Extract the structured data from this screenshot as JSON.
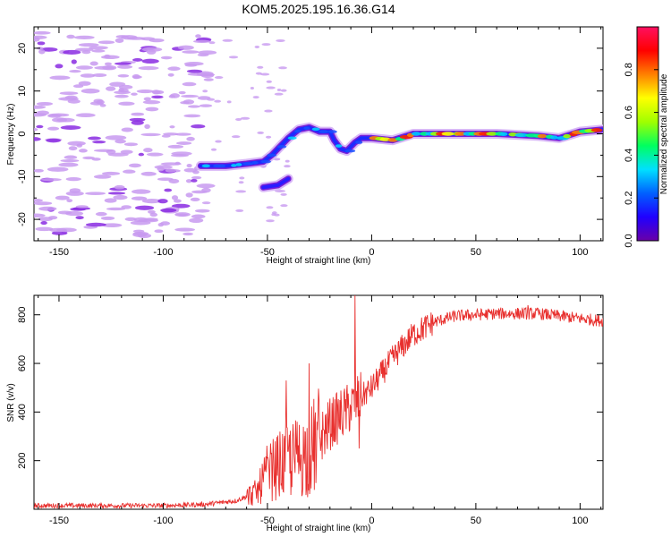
{
  "title": "KOM5.2025.195.16.36.G14",
  "colors": {
    "snr_line": "#e8302e",
    "scatter_light": "#c89af0",
    "scatter_dark": "#8a2be2",
    "colorbar": [
      "#6a00a8",
      "#2000ff",
      "#0060ff",
      "#00e0ff",
      "#00ff60",
      "#a0ff00",
      "#ffff00",
      "#ff8000",
      "#ff0000",
      "#ff1060"
    ]
  },
  "chart_data": [
    {
      "type": "heatmap",
      "xlabel": "Height of straight line (km)",
      "ylabel": "Frequency (Hz)",
      "xlim": [
        -162,
        111
      ],
      "ylim": [
        -25,
        25
      ],
      "xticks": [
        -150,
        -100,
        -50,
        0,
        50,
        100
      ],
      "yticks": [
        -20,
        -10,
        0,
        10,
        20
      ],
      "colorbar": {
        "label": "Normalized spectral amplitude",
        "ticks": [
          0.0,
          0.2,
          0.4,
          0.6,
          0.8
        ],
        "range": [
          0,
          1
        ]
      },
      "ridge": [
        {
          "x": -82,
          "y": -7.5
        },
        {
          "x": -70,
          "y": -7.5
        },
        {
          "x": -60,
          "y": -7.0
        },
        {
          "x": -52,
          "y": -6.5
        },
        {
          "x": -48,
          "y": -5.0
        },
        {
          "x": -45,
          "y": -3.5
        },
        {
          "x": -40,
          "y": -1.0
        },
        {
          "x": -35,
          "y": 1.0
        },
        {
          "x": -30,
          "y": 1.5
        },
        {
          "x": -25,
          "y": 0.5
        },
        {
          "x": -20,
          "y": 0.5
        },
        {
          "x": -18,
          "y": -1.5
        },
        {
          "x": -15,
          "y": -3.5
        },
        {
          "x": -12,
          "y": -4.0
        },
        {
          "x": -8,
          "y": -2.0
        },
        {
          "x": -5,
          "y": -1.0
        },
        {
          "x": 0,
          "y": -1.0
        },
        {
          "x": 10,
          "y": -1.5
        },
        {
          "x": 20,
          "y": 0.0
        },
        {
          "x": 40,
          "y": 0.0
        },
        {
          "x": 60,
          "y": 0.0
        },
        {
          "x": 80,
          "y": -0.5
        },
        {
          "x": 90,
          "y": -1.0
        },
        {
          "x": 100,
          "y": 0.5
        },
        {
          "x": 111,
          "y": 1.0
        }
      ],
      "branch": [
        {
          "x": -52,
          "y": -12.5
        },
        {
          "x": -45,
          "y": -12.0
        },
        {
          "x": -40,
          "y": -10.5
        }
      ]
    },
    {
      "type": "line",
      "xlabel": "Height of straight line (km)",
      "ylabel": "SNR (v/v)",
      "xlim": [
        -162,
        111
      ],
      "ylim": [
        0,
        880
      ],
      "xticks": [
        -150,
        -100,
        -50,
        0,
        50,
        100
      ],
      "yticks": [
        200,
        400,
        600,
        800
      ],
      "trend": [
        {
          "x": -162,
          "y": 15
        },
        {
          "x": -100,
          "y": 15
        },
        {
          "x": -80,
          "y": 20
        },
        {
          "x": -65,
          "y": 35
        },
        {
          "x": -55,
          "y": 70
        },
        {
          "x": -50,
          "y": 150
        },
        {
          "x": -40,
          "y": 200
        },
        {
          "x": -30,
          "y": 230
        },
        {
          "x": -20,
          "y": 350
        },
        {
          "x": -10,
          "y": 420
        },
        {
          "x": 0,
          "y": 500
        },
        {
          "x": 10,
          "y": 620
        },
        {
          "x": 20,
          "y": 720
        },
        {
          "x": 30,
          "y": 770
        },
        {
          "x": 40,
          "y": 795
        },
        {
          "x": 60,
          "y": 805
        },
        {
          "x": 80,
          "y": 805
        },
        {
          "x": 100,
          "y": 785
        },
        {
          "x": 111,
          "y": 775
        }
      ],
      "spikes": [
        {
          "x": -41,
          "y": 530
        },
        {
          "x": -30,
          "y": 600
        },
        {
          "x": -8,
          "y": 880
        },
        {
          "x": -6,
          "y": 250
        },
        {
          "x": 75,
          "y": 840
        }
      ]
    }
  ]
}
